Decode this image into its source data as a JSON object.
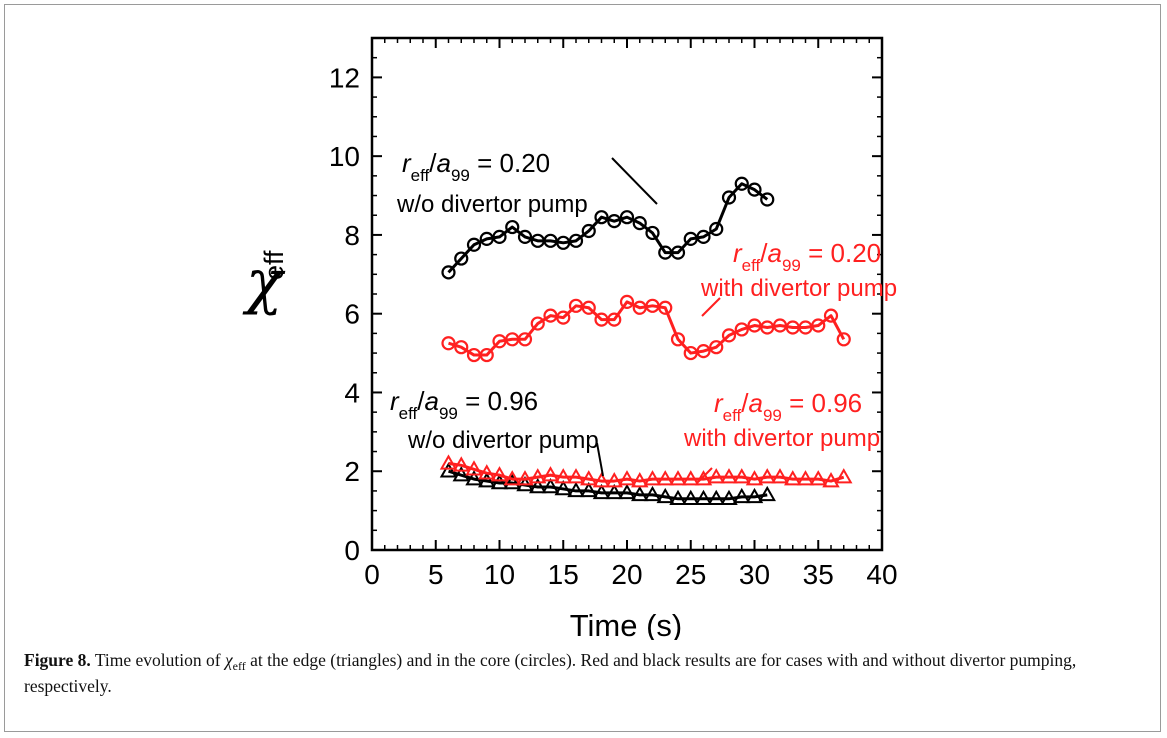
{
  "chart_data": {
    "type": "line",
    "xlabel": "Time (s)",
    "ylabel": "χ",
    "ylabel_sub": "eff",
    "xlim": [
      0,
      40
    ],
    "ylim": [
      0,
      13
    ],
    "xticks": [
      "0",
      "5",
      "10",
      "15",
      "20",
      "25",
      "30",
      "35",
      "40"
    ],
    "yticks": [
      "0",
      "2",
      "4",
      "6",
      "8",
      "10",
      "12"
    ],
    "grid": false,
    "series": [
      {
        "marker": "circle",
        "color": "#000000",
        "x": [
          6,
          7,
          8,
          9,
          10,
          11,
          12,
          13,
          14,
          15,
          16,
          17,
          18,
          19,
          20,
          21,
          22,
          23,
          24,
          25,
          26,
          27,
          28,
          29,
          30,
          31
        ],
        "y": [
          7.05,
          7.4,
          7.75,
          7.9,
          7.95,
          8.2,
          7.95,
          7.85,
          7.85,
          7.8,
          7.85,
          8.1,
          8.45,
          8.35,
          8.45,
          8.3,
          8.05,
          7.55,
          7.55,
          7.9,
          7.95,
          8.15,
          8.95,
          9.3,
          9.15,
          8.9
        ]
      },
      {
        "marker": "circle",
        "color": "#ff2020",
        "x": [
          6,
          7,
          8,
          9,
          10,
          11,
          12,
          13,
          14,
          15,
          16,
          17,
          18,
          19,
          20,
          21,
          22,
          23,
          24,
          25,
          26,
          27,
          28,
          29,
          30,
          31,
          32,
          33,
          34,
          35,
          36,
          37
        ],
        "y": [
          5.25,
          5.15,
          4.95,
          4.95,
          5.3,
          5.35,
          5.35,
          5.75,
          5.95,
          5.9,
          6.2,
          6.15,
          5.85,
          5.85,
          6.3,
          6.15,
          6.2,
          6.15,
          5.35,
          5.0,
          5.05,
          5.15,
          5.45,
          5.6,
          5.7,
          5.65,
          5.7,
          5.65,
          5.65,
          5.7,
          5.95,
          5.35
        ]
      },
      {
        "marker": "triangle",
        "color": "#000000",
        "x": [
          6,
          7,
          8,
          9,
          10,
          11,
          12,
          13,
          14,
          15,
          16,
          17,
          18,
          19,
          20,
          21,
          22,
          23,
          24,
          25,
          26,
          27,
          28,
          29,
          30,
          31
        ],
        "y": [
          2.0,
          1.9,
          1.8,
          1.75,
          1.7,
          1.7,
          1.65,
          1.6,
          1.6,
          1.55,
          1.5,
          1.5,
          1.45,
          1.45,
          1.45,
          1.4,
          1.4,
          1.35,
          1.3,
          1.3,
          1.3,
          1.3,
          1.3,
          1.35,
          1.35,
          1.4
        ]
      },
      {
        "marker": "triangle",
        "color": "#ff2020",
        "x": [
          6,
          7,
          8,
          9,
          10,
          11,
          12,
          13,
          14,
          15,
          16,
          17,
          18,
          19,
          20,
          21,
          22,
          23,
          24,
          25,
          26,
          27,
          28,
          29,
          30,
          31,
          32,
          33,
          34,
          35,
          36,
          37
        ],
        "y": [
          2.2,
          2.15,
          2.05,
          1.95,
          1.9,
          1.8,
          1.8,
          1.85,
          1.9,
          1.85,
          1.85,
          1.8,
          1.75,
          1.75,
          1.8,
          1.75,
          1.8,
          1.8,
          1.8,
          1.8,
          1.8,
          1.85,
          1.85,
          1.85,
          1.8,
          1.85,
          1.85,
          1.8,
          1.8,
          1.8,
          1.75,
          1.85
        ]
      }
    ],
    "annotations": [
      {
        "id": "core-black",
        "color": "#000000",
        "r": "r",
        "r_sub": "eff",
        "a": "a",
        "a_sub": "99",
        "value": " = 0.20",
        "line2": "w/o divertor pump"
      },
      {
        "id": "core-red",
        "color": "#ff2020",
        "r": "r",
        "r_sub": "eff",
        "a": "a",
        "a_sub": "99",
        "value": " = 0.20",
        "line2": "with divertor pump"
      },
      {
        "id": "edge-black",
        "color": "#000000",
        "r": "r",
        "r_sub": "eff",
        "a": "a",
        "a_sub": "99",
        "value": " = 0.96",
        "line2": "w/o divertor pump"
      },
      {
        "id": "edge-red",
        "color": "#ff2020",
        "r": "r",
        "r_sub": "eff",
        "a": "a",
        "a_sub": "99",
        "value": " = 0.96",
        "line2": "with divertor pump"
      }
    ]
  },
  "caption": {
    "label": "Figure 8.",
    "pre": " Time evolution of ",
    "chi": "χ",
    "chi_sub": "eff",
    "post": " at the edge (triangles) and in the core (circles). Red and black results are for cases with and without divertor pumping, respectively."
  }
}
